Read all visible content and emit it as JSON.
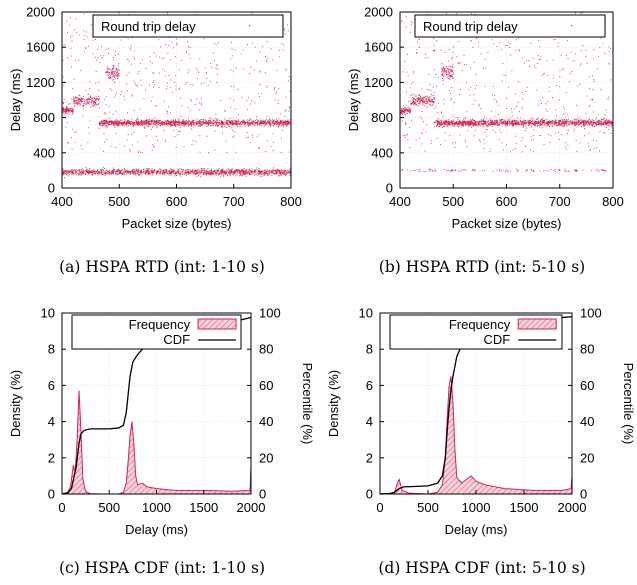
{
  "colors": {
    "series": "#d6204f",
    "fill": "#f4c6d0",
    "cdf": "#000000",
    "grid": "#d9d9d9"
  },
  "chart_data": [
    {
      "type": "scatter",
      "id": "a",
      "caption": "(a) HSPA RTD (int: 1-10 s)",
      "xlabel": "Packet size (bytes)",
      "ylabel": "Delay (ms)",
      "xlim": [
        400,
        800
      ],
      "ylim": [
        0,
        2000
      ],
      "xticks": [
        400,
        500,
        600,
        700,
        800
      ],
      "yticks": [
        0,
        400,
        800,
        1200,
        1600,
        2000
      ],
      "legend": "Round trip delay",
      "legend_position": "top-right",
      "grid": true,
      "clusters": [
        {
          "x": [
            400,
            800
          ],
          "y_center": 180,
          "y_spread": 35,
          "count": 1400
        },
        {
          "x": [
            465,
            800
          ],
          "y_center": 740,
          "y_spread": 35,
          "count": 1400
        },
        {
          "x": [
            400,
            420
          ],
          "y_center": 880,
          "y_spread": 40,
          "count": 90
        },
        {
          "x": [
            420,
            465
          ],
          "y_center": 990,
          "y_spread": 60,
          "count": 160
        },
        {
          "x": [
            478,
            500
          ],
          "y_center": 1300,
          "y_spread": 80,
          "count": 90
        },
        {
          "x": [
            400,
            800
          ],
          "y_center": 1200,
          "y_spread": 800,
          "count": 550
        }
      ]
    },
    {
      "type": "scatter",
      "id": "b",
      "caption": "(b) HSPA RTD (int: 5-10 s)",
      "xlabel": "Packet size (bytes)",
      "ylabel": "Delay (ms)",
      "xlim": [
        400,
        800
      ],
      "ylim": [
        0,
        2000
      ],
      "xticks": [
        400,
        500,
        600,
        700,
        800
      ],
      "yticks": [
        0,
        400,
        800,
        1200,
        1600,
        2000
      ],
      "legend": "Round trip delay",
      "legend_position": "top-right",
      "grid": true,
      "clusters": [
        {
          "x": [
            400,
            800
          ],
          "y_center": 200,
          "y_spread": 15,
          "count": 110
        },
        {
          "x": [
            465,
            800
          ],
          "y_center": 740,
          "y_spread": 35,
          "count": 1400
        },
        {
          "x": [
            400,
            420
          ],
          "y_center": 880,
          "y_spread": 40,
          "count": 90
        },
        {
          "x": [
            420,
            465
          ],
          "y_center": 990,
          "y_spread": 60,
          "count": 160
        },
        {
          "x": [
            478,
            500
          ],
          "y_center": 1320,
          "y_spread": 80,
          "count": 90
        },
        {
          "x": [
            400,
            800
          ],
          "y_center": 1200,
          "y_spread": 800,
          "count": 550
        }
      ]
    },
    {
      "type": "area",
      "id": "c",
      "caption": "(c) HSPA CDF (int: 1-10 s)",
      "xlabel": "Delay (ms)",
      "ylabel": "Density (%)",
      "y2label": "Percentile (%)",
      "xlim": [
        0,
        2000
      ],
      "ylim": [
        0,
        10
      ],
      "y2lim": [
        0,
        100
      ],
      "xticks": [
        0,
        500,
        1000,
        1500,
        2000
      ],
      "yticks": [
        0,
        2,
        4,
        6,
        8,
        10
      ],
      "y2ticks": [
        0,
        20,
        40,
        60,
        80,
        100
      ],
      "legend_position": "top",
      "grid": true,
      "series": [
        {
          "name": "Frequency",
          "x": [
            0,
            60,
            90,
            120,
            140,
            160,
            180,
            200,
            220,
            240,
            260,
            300,
            400,
            500,
            600,
            650,
            680,
            700,
            720,
            740,
            760,
            780,
            800,
            850,
            900,
            1000,
            1200,
            1500,
            1800,
            1990,
            2000
          ],
          "values": [
            0,
            0.1,
            0.4,
            1.6,
            1.2,
            3.0,
            5.7,
            3.5,
            0.9,
            0.3,
            0.1,
            0.02,
            0,
            0,
            0,
            0.1,
            0.6,
            1.8,
            3.2,
            4.0,
            2.8,
            1.0,
            0.5,
            0.6,
            0.4,
            0.3,
            0.2,
            0.2,
            0.15,
            0.2,
            1.6
          ]
        },
        {
          "name": "CDF",
          "x": [
            0,
            60,
            100,
            150,
            180,
            200,
            230,
            260,
            300,
            400,
            500,
            600,
            650,
            680,
            700,
            720,
            750,
            800,
            850,
            900,
            1000,
            1200,
            1400,
            1600,
            1800,
            2000
          ],
          "values": [
            0,
            0.5,
            3,
            15,
            28,
            33,
            35,
            35.5,
            36,
            36,
            36,
            36.5,
            38,
            45,
            55,
            65,
            73,
            77,
            80,
            82,
            84,
            87,
            90,
            93,
            95,
            97.5
          ]
        }
      ]
    },
    {
      "type": "area",
      "id": "d",
      "caption": "(d) HSPA CDF (int: 5-10 s)",
      "xlabel": "Delay (ms)",
      "ylabel": "Density (%)",
      "y2label": "Percentile (%)",
      "xlim": [
        0,
        2000
      ],
      "ylim": [
        0,
        10
      ],
      "y2lim": [
        0,
        100
      ],
      "xticks": [
        0,
        500,
        1000,
        1500,
        2000
      ],
      "yticks": [
        0,
        2,
        4,
        6,
        8,
        10
      ],
      "y2ticks": [
        0,
        20,
        40,
        60,
        80,
        100
      ],
      "legend_position": "top",
      "grid": true,
      "series": [
        {
          "name": "Frequency",
          "x": [
            0,
            150,
            180,
            200,
            230,
            300,
            500,
            600,
            650,
            680,
            700,
            720,
            740,
            760,
            780,
            800,
            850,
            900,
            950,
            1000,
            1100,
            1300,
            1600,
            1900,
            1990,
            2000
          ],
          "values": [
            0,
            0.05,
            0.6,
            0.8,
            0.2,
            0.05,
            0,
            0.1,
            0.5,
            2.0,
            4.2,
            6.0,
            6.5,
            5.0,
            2.5,
            0.9,
            0.6,
            0.8,
            1.0,
            0.7,
            0.5,
            0.3,
            0.2,
            0.2,
            0.3,
            1.0
          ]
        },
        {
          "name": "CDF",
          "x": [
            0,
            100,
            150,
            200,
            250,
            300,
            500,
            600,
            650,
            680,
            700,
            720,
            740,
            760,
            800,
            850,
            900,
            1000,
            1100,
            1200,
            1400,
            1600,
            1800,
            2000
          ],
          "values": [
            0,
            0.2,
            1,
            3,
            4,
            4,
            4.5,
            6,
            10,
            20,
            35,
            48,
            58,
            65,
            76,
            82,
            84,
            86,
            88,
            90,
            93,
            95,
            97,
            98
          ]
        }
      ]
    }
  ]
}
